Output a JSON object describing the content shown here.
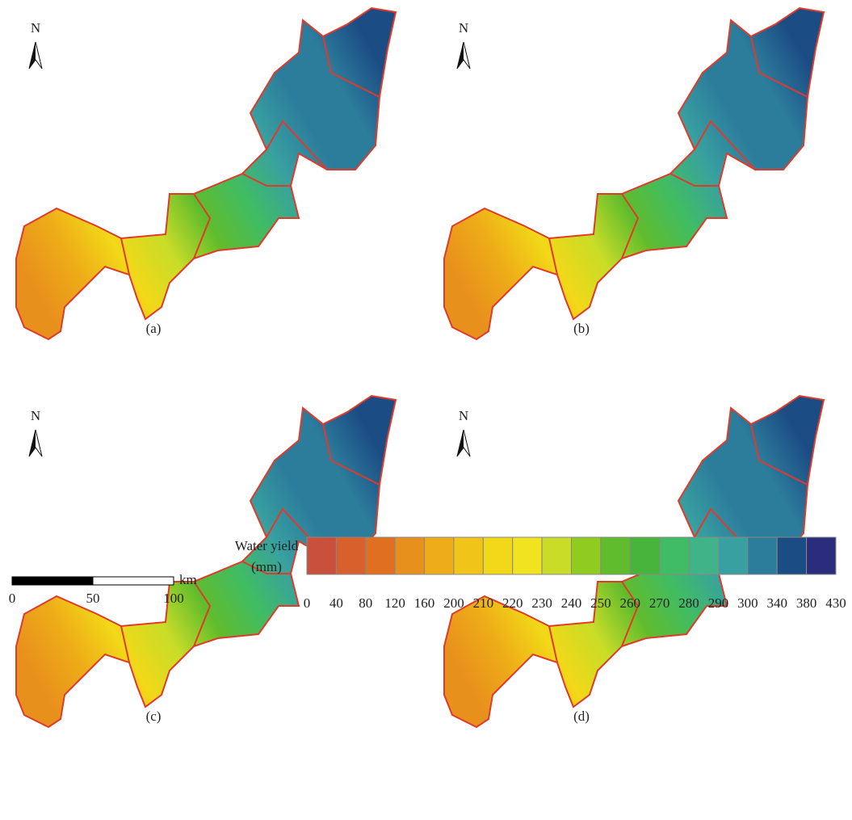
{
  "panels": [
    {
      "label": "(a)",
      "north": "N"
    },
    {
      "label": "(b)",
      "north": "N"
    },
    {
      "label": "(c)",
      "north": "N"
    },
    {
      "label": "(d)",
      "north": "N"
    }
  ],
  "scale_bar": {
    "ticks": [
      0,
      50,
      100
    ],
    "unit": "km"
  },
  "legend": {
    "title": [
      "Water yield",
      "(mm)"
    ],
    "colors": [
      "#c8503c",
      "#d8602c",
      "#e07020",
      "#e8901c",
      "#eeac18",
      "#f0c418",
      "#f2d818",
      "#f0e420",
      "#c8dc28",
      "#90cc20",
      "#60bc2c",
      "#48b43c",
      "#40bc64",
      "#40b488",
      "#38a0a0",
      "#2c7c9c",
      "#1c4c84",
      "#2c2c7c"
    ],
    "ticks": [
      0,
      40,
      80,
      120,
      160,
      200,
      210,
      220,
      230,
      240,
      250,
      260,
      270,
      280,
      290,
      300,
      340,
      380,
      430
    ]
  }
}
